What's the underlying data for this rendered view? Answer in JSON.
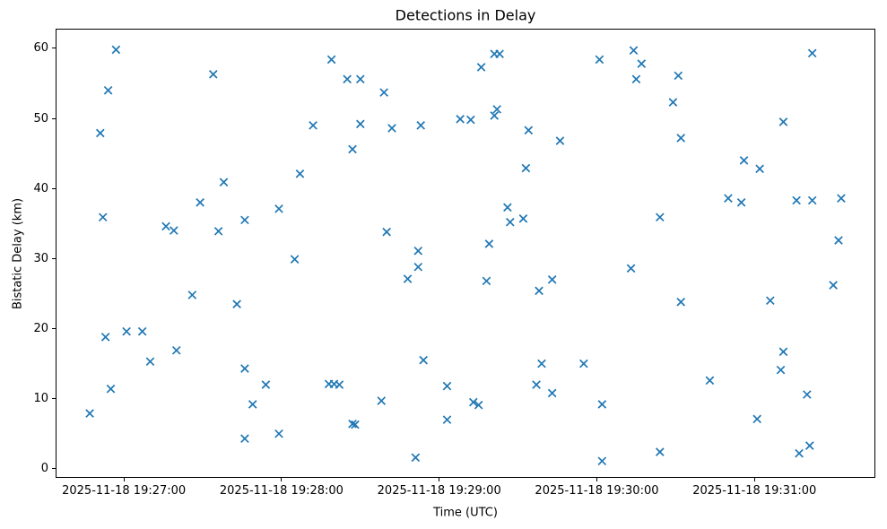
{
  "title": "Detections in Delay",
  "chart_data": {
    "type": "scatter",
    "title": "Detections in Delay",
    "xlabel": "Time (UTC)",
    "ylabel": "Bistatic Delay (km)",
    "marker": "x",
    "marker_color": "#1f77b4",
    "grid": false,
    "legend": "none",
    "xlim": [
      "19:26:34",
      "19:31:46"
    ],
    "ylim": [
      -1.3,
      62.8
    ],
    "y_ticks": [
      0,
      10,
      20,
      30,
      40,
      50,
      60
    ],
    "x_ticks": [
      {
        "time": "19:27:00",
        "label": "2025-11-18 19:27:00"
      },
      {
        "time": "19:28:00",
        "label": "2025-11-18 19:28:00"
      },
      {
        "time": "19:29:00",
        "label": "2025-11-18 19:29:00"
      },
      {
        "time": "19:30:00",
        "label": "2025-11-18 19:30:00"
      },
      {
        "time": "19:31:00",
        "label": "2025-11-18 19:31:00"
      }
    ],
    "points": [
      [
        "19:26:47",
        7.9
      ],
      [
        "19:26:51",
        47.9
      ],
      [
        "19:26:52",
        35.9
      ],
      [
        "19:26:53",
        18.8
      ],
      [
        "19:26:54",
        54.0
      ],
      [
        "19:26:55",
        11.4
      ],
      [
        "19:26:57",
        59.8
      ],
      [
        "19:27:01",
        19.6
      ],
      [
        "19:27:07",
        19.6
      ],
      [
        "19:27:10",
        15.3
      ],
      [
        "19:27:16",
        34.6
      ],
      [
        "19:27:19",
        34.0
      ],
      [
        "19:27:20",
        16.9
      ],
      [
        "19:27:26",
        24.8
      ],
      [
        "19:27:29",
        38.0
      ],
      [
        "19:27:34",
        56.3
      ],
      [
        "19:27:36",
        33.9
      ],
      [
        "19:27:38",
        40.9
      ],
      [
        "19:27:43",
        23.5
      ],
      [
        "19:27:46",
        35.5
      ],
      [
        "19:27:46",
        14.3
      ],
      [
        "19:27:46",
        4.3
      ],
      [
        "19:27:49",
        9.2
      ],
      [
        "19:27:54",
        12.0
      ],
      [
        "19:27:59",
        37.1
      ],
      [
        "19:27:59",
        5.0
      ],
      [
        "19:28:05",
        29.9
      ],
      [
        "19:28:07",
        42.1
      ],
      [
        "19:28:12",
        49.0
      ],
      [
        "19:28:18",
        12.1
      ],
      [
        "19:28:19",
        58.4
      ],
      [
        "19:28:20",
        12.1
      ],
      [
        "19:28:22",
        12.0
      ],
      [
        "19:28:25",
        55.6
      ],
      [
        "19:28:27",
        6.4
      ],
      [
        "19:28:27",
        45.6
      ],
      [
        "19:28:28",
        6.3
      ],
      [
        "19:28:30",
        49.2
      ],
      [
        "19:28:30",
        55.6
      ],
      [
        "19:28:38",
        9.7
      ],
      [
        "19:28:39",
        53.7
      ],
      [
        "19:28:40",
        33.8
      ],
      [
        "19:28:42",
        48.6
      ],
      [
        "19:28:48",
        27.1
      ],
      [
        "19:28:51",
        1.6
      ],
      [
        "19:28:52",
        31.1
      ],
      [
        "19:28:52",
        28.8
      ],
      [
        "19:28:53",
        49.0
      ],
      [
        "19:28:54",
        15.5
      ],
      [
        "19:29:03",
        11.8
      ],
      [
        "19:29:03",
        7.0
      ],
      [
        "19:29:08",
        49.9
      ],
      [
        "19:29:12",
        49.8
      ],
      [
        "19:29:13",
        9.5
      ],
      [
        "19:29:15",
        9.1
      ],
      [
        "19:29:16",
        57.3
      ],
      [
        "19:29:18",
        26.8
      ],
      [
        "19:29:19",
        32.1
      ],
      [
        "19:29:21",
        59.2
      ],
      [
        "19:29:21",
        50.4
      ],
      [
        "19:29:22",
        51.3
      ],
      [
        "19:29:23",
        59.2
      ],
      [
        "19:29:26",
        37.3
      ],
      [
        "19:29:27",
        35.2
      ],
      [
        "19:29:32",
        35.7
      ],
      [
        "19:29:33",
        42.9
      ],
      [
        "19:29:34",
        48.3
      ],
      [
        "19:29:37",
        12.0
      ],
      [
        "19:29:38",
        25.4
      ],
      [
        "19:29:39",
        15.0
      ],
      [
        "19:29:43",
        27.0
      ],
      [
        "19:29:43",
        10.8
      ],
      [
        "19:29:46",
        46.8
      ],
      [
        "19:29:55",
        15.0
      ],
      [
        "19:30:01",
        58.4
      ],
      [
        "19:30:02",
        9.2
      ],
      [
        "19:30:02",
        1.1
      ],
      [
        "19:30:13",
        28.6
      ],
      [
        "19:30:14",
        59.7
      ],
      [
        "19:30:15",
        55.6
      ],
      [
        "19:30:17",
        57.8
      ],
      [
        "19:30:24",
        35.9
      ],
      [
        "19:30:24",
        2.4
      ],
      [
        "19:30:29",
        52.3
      ],
      [
        "19:30:31",
        56.1
      ],
      [
        "19:30:32",
        23.8
      ],
      [
        "19:30:32",
        47.2
      ],
      [
        "19:30:43",
        12.6
      ],
      [
        "19:30:50",
        38.6
      ],
      [
        "19:30:55",
        38.0
      ],
      [
        "19:30:56",
        44.0
      ],
      [
        "19:31:01",
        7.1
      ],
      [
        "19:31:02",
        42.8
      ],
      [
        "19:31:06",
        24.0
      ],
      [
        "19:31:10",
        14.1
      ],
      [
        "19:31:11",
        49.5
      ],
      [
        "19:31:11",
        16.7
      ],
      [
        "19:31:16",
        38.3
      ],
      [
        "19:31:17",
        2.2
      ],
      [
        "19:31:20",
        10.6
      ],
      [
        "19:31:21",
        3.3
      ],
      [
        "19:31:22",
        59.3
      ],
      [
        "19:31:22",
        38.3
      ],
      [
        "19:31:30",
        26.2
      ],
      [
        "19:31:32",
        32.6
      ],
      [
        "19:31:33",
        38.6
      ]
    ]
  }
}
